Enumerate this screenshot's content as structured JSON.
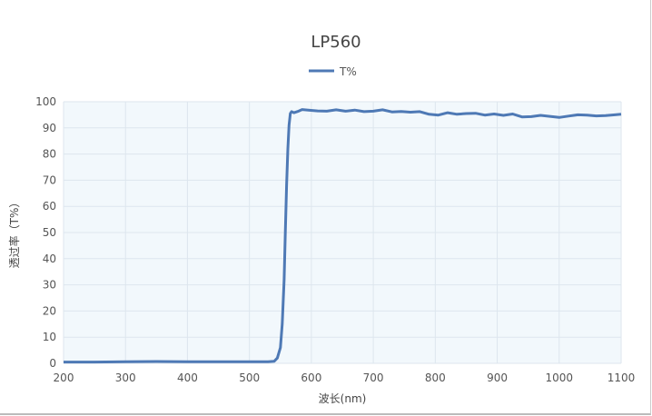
{
  "chart_data": {
    "type": "line",
    "title": "LP560",
    "xlabel": "波长(nm)",
    "ylabel": "透过率（T%）",
    "xlim": [
      200,
      1100
    ],
    "ylim": [
      0,
      100
    ],
    "xticks": [
      200,
      300,
      400,
      500,
      600,
      700,
      800,
      900,
      1000,
      1100
    ],
    "yticks": [
      0,
      10,
      20,
      30,
      40,
      50,
      60,
      70,
      80,
      90,
      100
    ],
    "grid": true,
    "legend": "top-center",
    "colors": {
      "line": "#4e79b5",
      "plot_bg": "#f2f8fc",
      "grid": "#dde6ee"
    },
    "series": [
      {
        "name": "T%",
        "x": [
          200,
          250,
          300,
          350,
          400,
          450,
          500,
          530,
          540,
          545,
          550,
          553,
          556,
          558,
          560,
          562,
          564,
          566,
          568,
          572,
          578,
          585,
          595,
          610,
          625,
          640,
          655,
          670,
          685,
          700,
          715,
          730,
          745,
          760,
          775,
          790,
          805,
          820,
          835,
          850,
          865,
          880,
          895,
          910,
          925,
          940,
          955,
          970,
          985,
          1000,
          1015,
          1030,
          1045,
          1060,
          1075,
          1090,
          1100
        ],
        "y": [
          0.5,
          0.5,
          0.6,
          0.7,
          0.6,
          0.6,
          0.6,
          0.6,
          0.8,
          2,
          6,
          15,
          32,
          50,
          68,
          82,
          91,
          95.5,
          96.2,
          95.8,
          96.3,
          97,
          96.8,
          96.5,
          96.4,
          96.9,
          96.4,
          96.8,
          96.2,
          96.4,
          96.9,
          96.1,
          96.3,
          96.0,
          96.2,
          95.2,
          94.9,
          95.8,
          95.2,
          95.5,
          95.6,
          94.9,
          95.3,
          94.8,
          95.3,
          94.2,
          94.3,
          94.8,
          94.4,
          94.0,
          94.5,
          95.0,
          94.9,
          94.6,
          94.7,
          95.0,
          95.2
        ]
      }
    ]
  }
}
